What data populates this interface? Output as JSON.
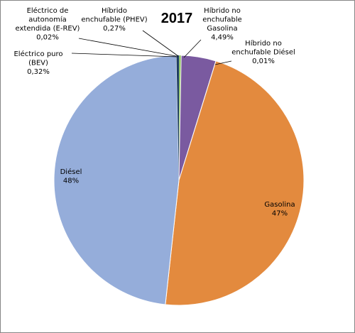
{
  "chart_data": {
    "type": "pie",
    "title": "2017",
    "categories": [
      "Eléctrico de autonomía extendida (E-REV)",
      "Híbrido enchufable (PHEV)",
      "Híbrido no enchufable Gasolina",
      "Híbrido no enchufable Diésel",
      "Gasolina",
      "Diésel",
      "Eléctrico puro (BEV)"
    ],
    "values": [
      0.02,
      0.27,
      4.49,
      0.01,
      47,
      48,
      0.32
    ],
    "value_unit": "%",
    "colors": [
      "#a9c9e8",
      "#8bbf5a",
      "#7a5aa0",
      "#3f9fc8",
      "#e38a3e",
      "#95adda",
      "#1f3e64"
    ],
    "labels": [
      {
        "lines": [
          "Eléctrico de",
          "autonomía",
          "extendida (E-REV)"
        ],
        "value_text": "0,02%"
      },
      {
        "lines": [
          "Híbrido",
          "enchufable (PHEV)"
        ],
        "value_text": "0,27%"
      },
      {
        "lines": [
          "Híbrido no",
          "enchufable",
          "Gasolina"
        ],
        "value_text": "4,49%"
      },
      {
        "lines": [
          "Híbrido no",
          "enchufable Diésel"
        ],
        "value_text": "0,01%"
      },
      {
        "lines": [
          "Gasolina"
        ],
        "value_text": "47%"
      },
      {
        "lines": [
          "Diésel"
        ],
        "value_text": "48%"
      },
      {
        "lines": [
          "Eléctrico puro",
          "(BEV)"
        ],
        "value_text": "0,32%"
      }
    ],
    "legend": "none",
    "start": "top",
    "direction": "clockwise"
  }
}
